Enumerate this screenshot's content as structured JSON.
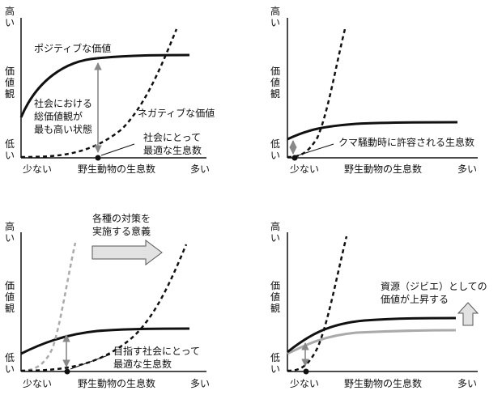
{
  "common": {
    "y_high": "高い",
    "y_high_chars": [
      "高",
      "い"
    ],
    "y_mid_chars": [
      "価",
      "値",
      "観"
    ],
    "y_low_chars": [
      "低",
      "い"
    ],
    "x_low": "少ない",
    "x_mid": "野生動物の生息数",
    "x_high": "多い"
  },
  "panel1": {
    "positive_label": "ポジティブな価値",
    "negative_label": "ネガティブな価値",
    "max_label_lines": [
      "社会における",
      "総価値観が",
      "最も高い状態"
    ],
    "optimal_label_lines": [
      "社会にとって",
      "最適な生息数"
    ]
  },
  "panel2": {
    "tolerance_label": "クマ騒動時に許容される生息数"
  },
  "panel3": {
    "measures_label_lines": [
      "各種の対策を",
      "実施する意義"
    ],
    "target_label_lines": [
      "目指す社会にとって",
      "最適な生息数"
    ]
  },
  "panel4": {
    "resource_label_lines": [
      "資源（ジビエ）としての",
      "価値が上昇する"
    ]
  }
}
